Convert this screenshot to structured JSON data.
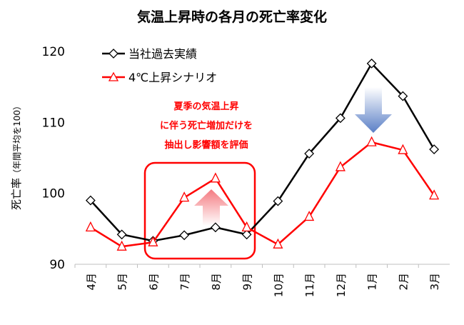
{
  "chart_data": {
    "type": "line",
    "title": "気温上昇時の各月の死亡率変化",
    "ylabel": "死亡率",
    "ylabel_note": "（年間平均を100）",
    "xlabel": "",
    "categories": [
      "4月",
      "5月",
      "6月",
      "7月",
      "8月",
      "9月",
      "10月",
      "11月",
      "12月",
      "1月",
      "2月",
      "3月"
    ],
    "ylim": [
      90,
      120
    ],
    "yticks": [
      90,
      100,
      110,
      120
    ],
    "grid": false,
    "legend": "top-left",
    "series": [
      {
        "name": "当社過去実績",
        "color": "#000000",
        "marker": "diamond",
        "values": [
          99.0,
          94.2,
          93.3,
          94.1,
          95.2,
          94.2,
          98.9,
          105.6,
          110.6,
          118.3,
          113.7,
          106.2
        ]
      },
      {
        "name": "4℃上昇シナリオ",
        "color": "#ff0000",
        "marker": "triangle",
        "values": [
          95.2,
          92.5,
          93.1,
          99.4,
          102.1,
          95.2,
          92.8,
          96.7,
          103.7,
          107.2,
          106.1,
          99.7
        ]
      }
    ],
    "annotation": {
      "lines": [
        "夏季の気温上昇",
        "に伴う死亡増加だけを",
        "抽出し影響額を評価"
      ],
      "color": "#ff0000",
      "highlight_range": [
        "6月",
        "9月"
      ]
    }
  }
}
